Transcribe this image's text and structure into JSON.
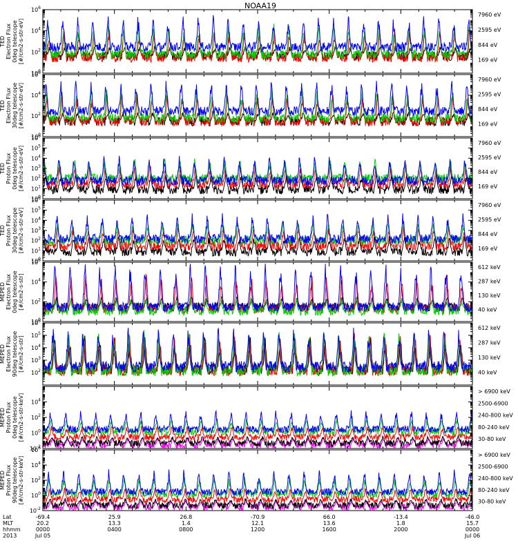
{
  "title": "NOAA19",
  "chart_data": [
    {
      "type": "line",
      "panel": 1,
      "ylabel_lines": [
        "TED",
        "Electron Flux",
        "0deg telescope",
        "[#/cm2-s-str-eV]"
      ],
      "yscale": "log",
      "ylim": [
        1,
        1000000
      ],
      "ytick_labels": [
        "10^0",
        "10^2",
        "10^4",
        "10^6"
      ],
      "series": [
        {
          "name": "7960 eV",
          "color": "#000000",
          "level": [
            40,
            400
          ]
        },
        {
          "name": "2595 eV",
          "color": "#ff0000",
          "level": [
            30,
            20000
          ]
        },
        {
          "name": "844 eV",
          "color": "#00cc00",
          "level": [
            60,
            50000
          ]
        },
        {
          "name": "169 eV",
          "color": "#0000ff",
          "level": [
            300,
            300000
          ]
        }
      ]
    },
    {
      "type": "line",
      "panel": 2,
      "ylabel_lines": [
        "TED",
        "Electron Flux",
        "30deg telescope",
        "[#/cm2-s-str-eV]"
      ],
      "yscale": "log",
      "ylim": [
        1,
        1000000
      ],
      "ytick_labels": [
        "10^0",
        "10^2",
        "10^4",
        "10^6"
      ],
      "series": [
        {
          "name": "7960 eV",
          "color": "#000000",
          "level": [
            30,
            300
          ]
        },
        {
          "name": "2595 eV",
          "color": "#ff0000",
          "level": [
            30,
            20000
          ]
        },
        {
          "name": "844 eV",
          "color": "#00cc00",
          "level": [
            60,
            50000
          ]
        },
        {
          "name": "169 eV",
          "color": "#0000ff",
          "level": [
            300,
            300000
          ]
        }
      ]
    },
    {
      "type": "line",
      "panel": 3,
      "ylabel_lines": [
        "TED",
        "Proton Flux",
        "0deg telescope",
        "[#/cm2-s-str-eV]"
      ],
      "yscale": "log",
      "ylim": [
        1,
        1000000
      ],
      "ytick_labels": [
        "10^0",
        "10^1",
        "10^2",
        "10^3",
        "10^4",
        "10^5",
        "10^6"
      ],
      "series": [
        {
          "name": "7960 eV",
          "color": "#000000",
          "level": [
            8,
            300
          ]
        },
        {
          "name": "2595 eV",
          "color": "#ff0000",
          "level": [
            30,
            3000
          ]
        },
        {
          "name": "844 eV",
          "color": "#00cc00",
          "level": [
            100,
            10000
          ]
        },
        {
          "name": "169 eV",
          "color": "#0000ff",
          "level": [
            60,
            20000
          ]
        }
      ]
    },
    {
      "type": "line",
      "panel": 4,
      "ylabel_lines": [
        "TED",
        "Proton Flux",
        "30deg telescope",
        "[#/cm2-s-str-eV]"
      ],
      "yscale": "log",
      "ylim": [
        1,
        1000000
      ],
      "ytick_labels": [
        "10^0",
        "10^1",
        "10^2",
        "10^3",
        "10^4",
        "10^5",
        "10^6"
      ],
      "series": [
        {
          "name": "7960 eV",
          "color": "#000000",
          "level": [
            8,
            300
          ]
        },
        {
          "name": "2595 eV",
          "color": "#ff0000",
          "level": [
            30,
            3000
          ]
        },
        {
          "name": "844 eV",
          "color": "#00cc00",
          "level": [
            100,
            10000
          ]
        },
        {
          "name": "169 eV",
          "color": "#0000ff",
          "level": [
            150,
            50000
          ]
        }
      ]
    },
    {
      "type": "line",
      "panel": 5,
      "ylabel_lines": [
        "MEPED",
        "Electron Flux",
        "0deg telescope",
        "[#/cm2-s-str]"
      ],
      "yscale": "log",
      "ylim": [
        1,
        1000000
      ],
      "ytick_labels": [
        "10^0",
        "10^2",
        "10^4",
        "10^6"
      ],
      "series": [
        {
          "name": "612 keV",
          "color": "#000000",
          "level": [
            30,
            400
          ]
        },
        {
          "name": "287 keV",
          "color": "#ff0000",
          "level": [
            20,
            100000
          ]
        },
        {
          "name": "130 keV",
          "color": "#00cc00",
          "level": [
            12,
            300
          ]
        },
        {
          "name": "40 keV",
          "color": "#0000ff",
          "level": [
            30,
            1000000
          ]
        }
      ]
    },
    {
      "type": "line",
      "panel": 6,
      "ylabel_lines": [
        "MEPED",
        "Electron Flux",
        "90deg telescope",
        "[#/cm2-s-str]"
      ],
      "yscale": "log",
      "ylim": [
        10,
        1000000
      ],
      "ytick_labels": [
        "10^2",
        "10^3",
        "10^4",
        "10^5",
        "10^6"
      ],
      "series": [
        {
          "name": "612 keV",
          "color": "#000000",
          "level": [
            200,
            100000
          ]
        },
        {
          "name": "287 keV",
          "color": "#ff0000",
          "level": [
            150,
            200000
          ]
        },
        {
          "name": "130 keV",
          "color": "#00cc00",
          "level": [
            150,
            300000
          ]
        },
        {
          "name": "40 keV",
          "color": "#0000ff",
          "level": [
            300,
            500000
          ]
        }
      ]
    },
    {
      "type": "line",
      "panel": 7,
      "ylabel_lines": [
        "MEPED",
        "Proton Flux",
        "0deg telescope",
        "[#/cm2-s-str-keV]"
      ],
      "yscale": "log",
      "ylim": [
        0.01,
        1000000
      ],
      "ytick_labels": [
        "10^-2",
        "10^0",
        "10^2",
        "10^4"
      ],
      "series": [
        {
          "name": "> 6900 keV",
          "color": "#ff00ff",
          "level": [
            0.03,
            0.3
          ]
        },
        {
          "name": "2500-6900",
          "color": "#000000",
          "level": [
            0.05,
            0.5
          ]
        },
        {
          "name": "240-800 keV",
          "color": "#ff0000",
          "level": [
            0.3,
            10
          ]
        },
        {
          "name": "80-240 keV",
          "color": "#00cc00",
          "level": [
            1.5,
            100
          ]
        },
        {
          "name": "30-80 keV",
          "color": "#0000ff",
          "level": [
            3,
            1000
          ]
        }
      ]
    },
    {
      "type": "line",
      "panel": 8,
      "ylabel_lines": [
        "MEPED",
        "Proton Flux",
        "90deg telescope",
        "[#/cm2-s-str-keV]"
      ],
      "yscale": "log",
      "ylim": [
        0.01,
        1000000
      ],
      "ytick_labels": [
        "10^-2",
        "10^0",
        "10^2",
        "10^4",
        "10^6"
      ],
      "series": [
        {
          "name": "> 6900 keV",
          "color": "#ff00ff",
          "level": [
            0.03,
            0.3
          ]
        },
        {
          "name": "2500-6900",
          "color": "#000000",
          "level": [
            0.05,
            0.5
          ]
        },
        {
          "name": "240-800 keV",
          "color": "#ff0000",
          "level": [
            0.3,
            10
          ]
        },
        {
          "name": "80-240 keV",
          "color": "#00cc00",
          "level": [
            1.5,
            300
          ]
        },
        {
          "name": "30-80 keV",
          "color": "#0000ff",
          "level": [
            3,
            3000
          ]
        }
      ]
    }
  ],
  "x_axis": {
    "row_labels": [
      "Lat",
      "MLT",
      "hhmm",
      "2013"
    ],
    "ticks": [
      {
        "hours": 0,
        "lat": "-69.4",
        "mlt": "20.2",
        "hhmm": "0000",
        "date": "Jul 05"
      },
      {
        "hours": 4,
        "lat": "25.9",
        "mlt": "13.3",
        "hhmm": "0400",
        "date": ""
      },
      {
        "hours": 8,
        "lat": "26.8",
        "mlt": "1.4",
        "hhmm": "0800",
        "date": ""
      },
      {
        "hours": 12,
        "lat": "-70.9",
        "mlt": "12.1",
        "hhmm": "1200",
        "date": ""
      },
      {
        "hours": 16,
        "lat": "66.0",
        "mlt": "13.6",
        "hhmm": "1600",
        "date": ""
      },
      {
        "hours": 20,
        "lat": "-13.4",
        "mlt": "1.8",
        "hhmm": "2000",
        "date": ""
      },
      {
        "hours": 24,
        "lat": "-46.0",
        "mlt": "15.7",
        "hhmm": "0000",
        "date": "Jul 06"
      }
    ],
    "range_hours": [
      0,
      24
    ]
  }
}
